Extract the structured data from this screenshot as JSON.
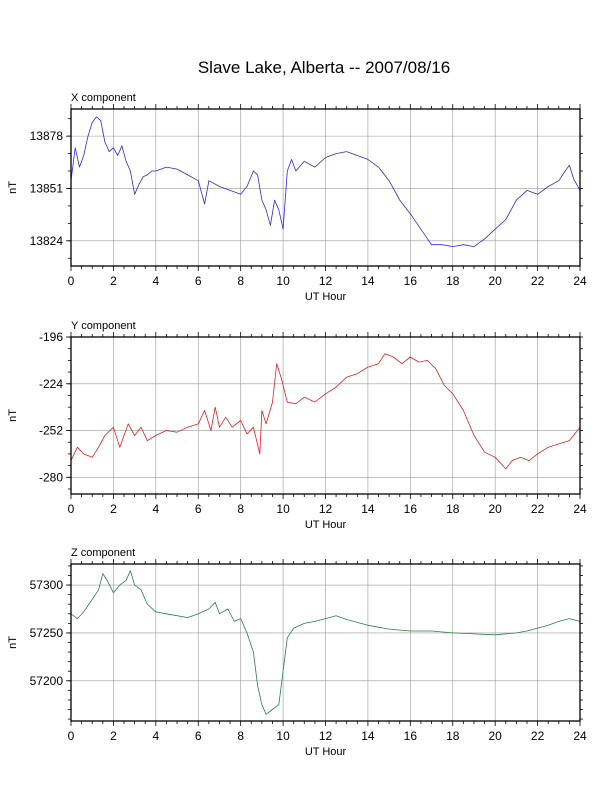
{
  "title": "Slave Lake, Alberta -- 2007/08/16",
  "chart_data": [
    {
      "type": "line",
      "title": "X component",
      "xlabel": "UT Hour",
      "ylabel": "nT",
      "xlim": [
        0,
        24
      ],
      "ylim": [
        13811,
        13892
      ],
      "xticks": [
        0,
        2,
        4,
        6,
        8,
        10,
        12,
        14,
        16,
        18,
        20,
        22,
        24
      ],
      "yticks": [
        13824,
        13851,
        13878
      ],
      "grid": true,
      "color": "#2b2bd6",
      "series": [
        {
          "x": [
            0,
            0.2,
            0.4,
            0.6,
            0.8,
            1.0,
            1.2,
            1.4,
            1.6,
            1.8,
            2.0,
            2.2,
            2.4,
            2.6,
            2.8,
            3.0,
            3.2,
            3.4,
            3.6,
            3.8,
            4.0,
            4.5,
            5.0,
            5.5,
            6.0,
            6.3,
            6.5,
            7.0,
            7.5,
            8.0,
            8.3,
            8.6,
            8.8,
            9.0,
            9.2,
            9.4,
            9.6,
            9.8,
            10.0,
            10.2,
            10.4,
            10.6,
            11.0,
            11.5,
            12.0,
            12.5,
            13.0,
            13.5,
            14.0,
            14.5,
            15.0,
            15.5,
            16.0,
            16.5,
            17.0,
            17.5,
            18.0,
            18.5,
            19.0,
            19.5,
            20.0,
            20.5,
            21.0,
            21.5,
            22.0,
            22.5,
            23.0,
            23.3,
            23.5,
            23.7,
            24.0
          ],
          "y": [
            13855,
            13872,
            13862,
            13868,
            13878,
            13885,
            13888,
            13886,
            13875,
            13870,
            13872,
            13868,
            13873,
            13865,
            13860,
            13848,
            13853,
            13857,
            13858,
            13860,
            13860,
            13862,
            13861,
            13858,
            13855,
            13843,
            13855,
            13852,
            13850,
            13848,
            13852,
            13860,
            13858,
            13845,
            13840,
            13832,
            13845,
            13840,
            13830,
            13860,
            13866,
            13860,
            13865,
            13862,
            13867,
            13869,
            13870,
            13868,
            13866,
            13862,
            13855,
            13845,
            13838,
            13830,
            13822,
            13822,
            13821,
            13822,
            13821,
            13825,
            13830,
            13835,
            13845,
            13850,
            13848,
            13852,
            13855,
            13860,
            13863,
            13856,
            13850
          ]
        }
      ]
    },
    {
      "type": "line",
      "title": "Y component",
      "xlabel": "UT Hour",
      "ylabel": "nT",
      "xlim": [
        0,
        24
      ],
      "ylim": [
        -290,
        -196
      ],
      "xticks": [
        0,
        2,
        4,
        6,
        8,
        10,
        12,
        14,
        16,
        18,
        20,
        22,
        24
      ],
      "yticks": [
        -280,
        -252,
        -224,
        -196
      ],
      "grid": true,
      "color": "#e02020",
      "series": [
        {
          "x": [
            0,
            0.3,
            0.6,
            1.0,
            1.3,
            1.6,
            2.0,
            2.3,
            2.5,
            2.7,
            3.0,
            3.3,
            3.6,
            4.0,
            4.5,
            5.0,
            5.5,
            6.0,
            6.3,
            6.6,
            6.8,
            7.0,
            7.3,
            7.6,
            8.0,
            8.3,
            8.6,
            8.9,
            9.0,
            9.2,
            9.5,
            9.7,
            9.9,
            10.2,
            10.6,
            11.0,
            11.5,
            12.0,
            12.5,
            13.0,
            13.5,
            14.0,
            14.5,
            14.8,
            15.2,
            15.6,
            16.0,
            16.4,
            16.8,
            17.2,
            17.6,
            18.0,
            18.5,
            19.0,
            19.5,
            20.0,
            20.5,
            20.8,
            21.2,
            21.6,
            22.0,
            22.5,
            23.0,
            23.5,
            24.0
          ],
          "y": [
            -270,
            -262,
            -266,
            -268,
            -262,
            -255,
            -250,
            -262,
            -255,
            -248,
            -255,
            -250,
            -258,
            -255,
            -252,
            -253,
            -250,
            -248,
            -240,
            -252,
            -238,
            -250,
            -244,
            -250,
            -246,
            -254,
            -250,
            -266,
            -240,
            -248,
            -235,
            -212,
            -220,
            -235,
            -236,
            -232,
            -235,
            -230,
            -226,
            -220,
            -218,
            -214,
            -212,
            -206,
            -208,
            -212,
            -208,
            -211,
            -210,
            -215,
            -225,
            -230,
            -240,
            -255,
            -265,
            -268,
            -275,
            -270,
            -268,
            -270,
            -266,
            -262,
            -260,
            -258,
            -250
          ]
        }
      ]
    },
    {
      "type": "line",
      "title": "Z component",
      "xlabel": "UT Hour",
      "ylabel": "nT",
      "xlim": [
        0,
        24
      ],
      "ylim": [
        57158,
        57322
      ],
      "xticks": [
        0,
        2,
        4,
        6,
        8,
        10,
        12,
        14,
        16,
        18,
        20,
        22,
        24
      ],
      "yticks": [
        57200,
        57250,
        57300
      ],
      "grid": true,
      "color": "#2e7d4f",
      "series": [
        {
          "x": [
            0,
            0.3,
            0.6,
            1.0,
            1.3,
            1.5,
            1.7,
            2.0,
            2.3,
            2.6,
            2.8,
            3.0,
            3.3,
            3.6,
            4.0,
            4.5,
            5.0,
            5.5,
            6.0,
            6.5,
            6.8,
            7.0,
            7.4,
            7.7,
            8.0,
            8.3,
            8.6,
            8.8,
            9.0,
            9.2,
            9.5,
            9.8,
            10.0,
            10.2,
            10.5,
            11.0,
            11.5,
            12.0,
            12.5,
            13.0,
            14.0,
            15.0,
            16.0,
            17.0,
            18.0,
            19.0,
            20.0,
            21.0,
            21.5,
            22.0,
            22.5,
            23.0,
            23.5,
            24.0
          ],
          "y": [
            57270,
            57265,
            57272,
            57285,
            57295,
            57312,
            57305,
            57292,
            57300,
            57305,
            57315,
            57300,
            57295,
            57280,
            57272,
            57270,
            57268,
            57266,
            57270,
            57275,
            57282,
            57270,
            57275,
            57262,
            57265,
            57250,
            57230,
            57195,
            57175,
            57165,
            57170,
            57175,
            57210,
            57245,
            57255,
            57260,
            57262,
            57265,
            57268,
            57264,
            57258,
            57254,
            57252,
            57252,
            57250,
            57249,
            57248,
            57250,
            57252,
            57255,
            57258,
            57262,
            57265,
            57262
          ]
        }
      ]
    }
  ]
}
